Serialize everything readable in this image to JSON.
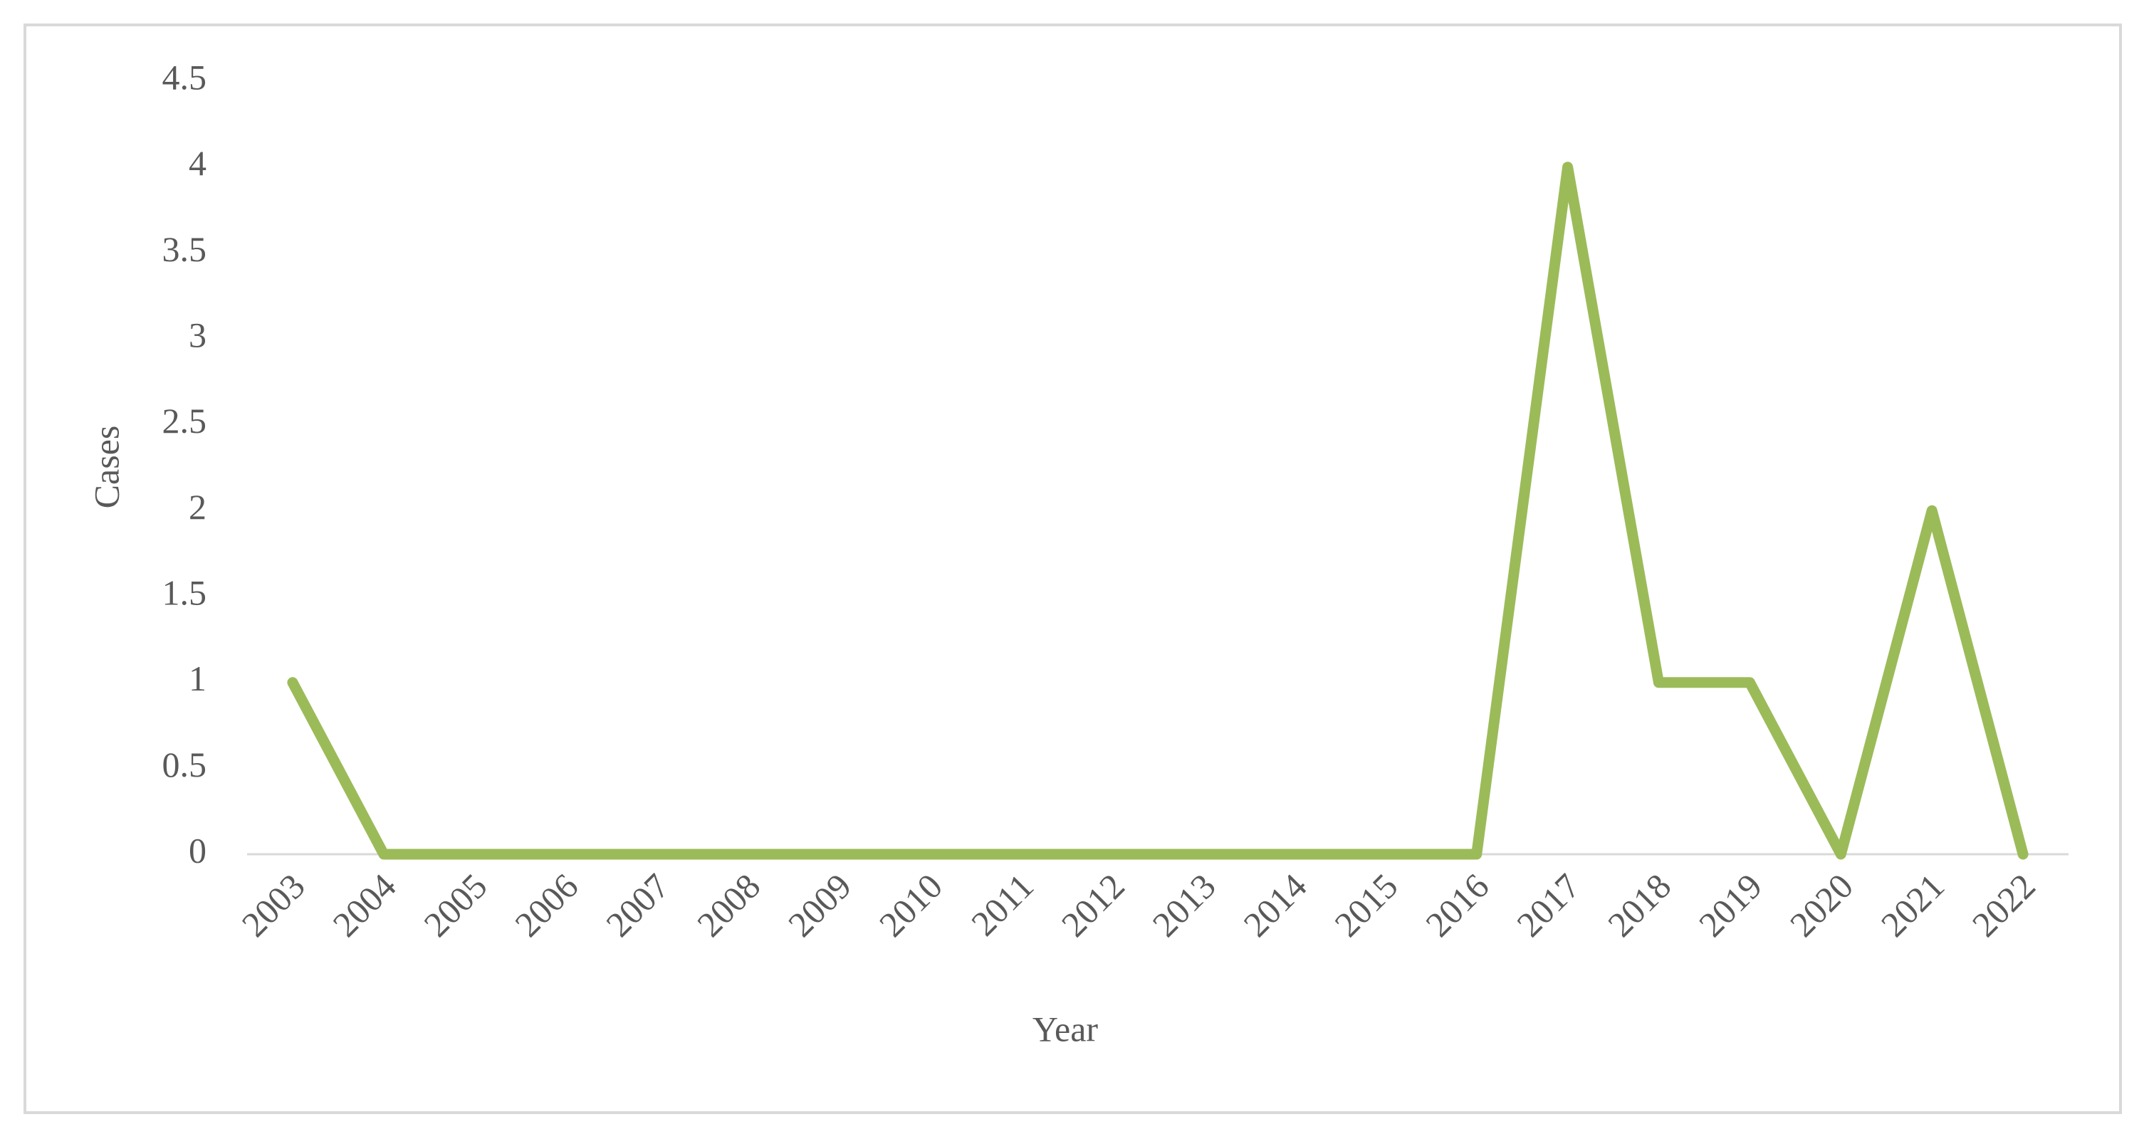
{
  "chart_data": {
    "type": "line",
    "x_label": "Year",
    "y_label": "Cases",
    "categories": [
      "2003",
      "2004",
      "2005",
      "2006",
      "2007",
      "2008",
      "2009",
      "2010",
      "2011",
      "2012",
      "2013",
      "2014",
      "2015",
      "2016",
      "2017",
      "2018",
      "2019",
      "2020",
      "2021",
      "2022"
    ],
    "values": [
      1,
      0,
      0,
      0,
      0,
      0,
      0,
      0,
      0,
      0,
      0,
      0,
      0,
      0,
      4,
      1,
      1,
      0,
      2,
      0
    ],
    "color": "#9bbb59",
    "ylim": [
      0,
      4.5
    ],
    "yticks": [
      0,
      0.5,
      1,
      1.5,
      2,
      2.5,
      3,
      3.5,
      4,
      4.5
    ],
    "grid": false
  }
}
